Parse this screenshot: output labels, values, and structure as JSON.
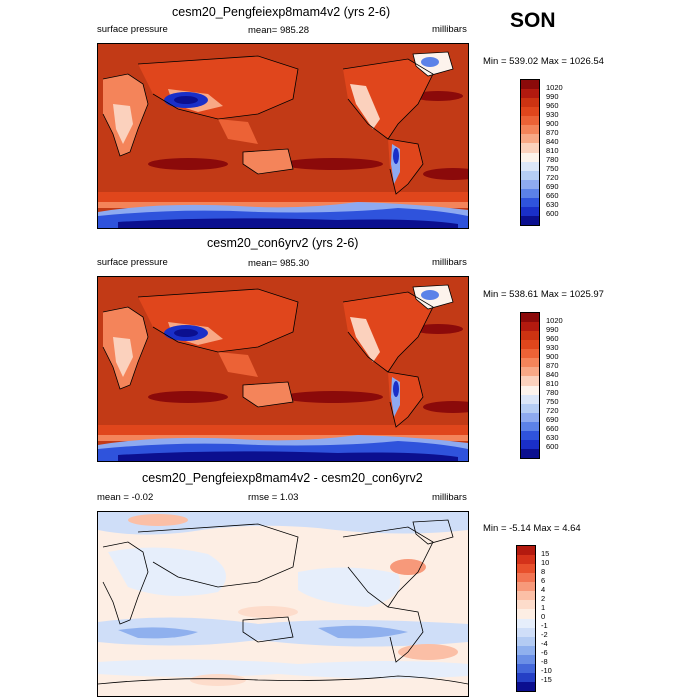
{
  "season": "SON",
  "panels": [
    {
      "title": "cesm20_Pengfeiexp8mam4v2 (yrs 2-6)",
      "left": "surface pressure",
      "center": "mean= 985.28",
      "right": "millibars",
      "minmax": "Min = 539.02 Max = 1026.54"
    },
    {
      "title": "cesm20_con6yrv2 (yrs 2-6)",
      "left": "surface pressure",
      "center": "mean= 985.30",
      "right": "millibars",
      "minmax": "Min = 538.61 Max = 1025.97"
    },
    {
      "title": "cesm20_Pengfeiexp8mam4v2 - cesm20_con6yrv2",
      "left": "mean =  -0.02",
      "center": "rmse =  1.03",
      "right": "millibars",
      "minmax": "Min =  -5.14 Max =   4.64"
    }
  ],
  "colorbars": {
    "pressure": {
      "labels": [
        "1020",
        "990",
        "960",
        "930",
        "900",
        "870",
        "840",
        "810",
        "780",
        "750",
        "720",
        "690",
        "660",
        "630",
        "600"
      ],
      "colors": [
        "#8b0a0a",
        "#b31a0f",
        "#cc3312",
        "#e0461c",
        "#ec6236",
        "#f4845a",
        "#f8a886",
        "#fbd1bd",
        "#fdf3ec",
        "#dce6f8",
        "#b6cdf4",
        "#8eaaf0",
        "#5c82e8",
        "#2f53dc",
        "#1a2fc8",
        "#0b0f8f"
      ]
    },
    "difference": {
      "labels": [
        "15",
        "10",
        "8",
        "6",
        "4",
        "2",
        "1",
        "0",
        "-1",
        "-2",
        "-4",
        "-6",
        "-8",
        "-10",
        "-15"
      ],
      "colors": [
        "#b31a0f",
        "#d4321a",
        "#e8502c",
        "#f27452",
        "#f7997a",
        "#fbbfa6",
        "#fddccb",
        "#fdeee4",
        "#e6eefb",
        "#cfdef8",
        "#b3cbf3",
        "#8fb0ee",
        "#6a8fe6",
        "#4468da",
        "#2540c5",
        "#0b0f8f"
      ]
    }
  }
}
